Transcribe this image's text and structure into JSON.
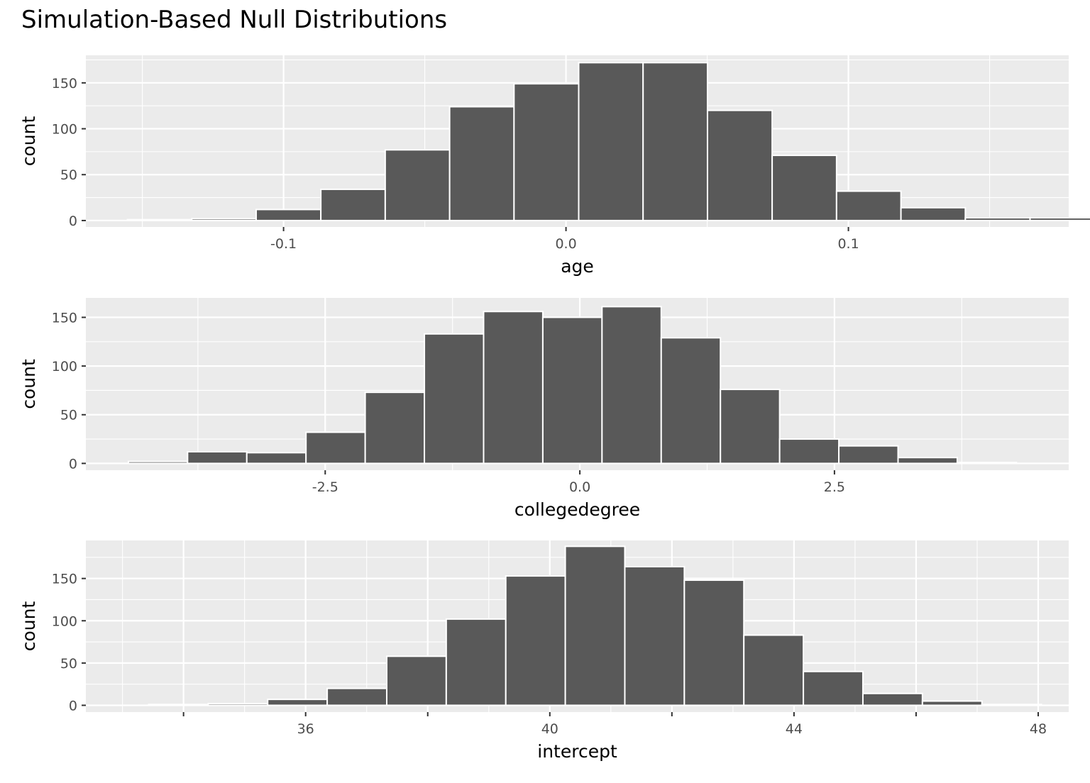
{
  "title": "Simulation-Based Null Distributions",
  "colors": {
    "panel_bg": "#ebebeb",
    "grid": "#ffffff",
    "bar_fill": "#595959",
    "bar_outline": "#ffffff",
    "tick_text": "#4d4d4d"
  },
  "chart_data": [
    {
      "type": "bar",
      "title": "",
      "xlabel": "age",
      "ylabel": "count",
      "xlim": [
        -0.17,
        0.178
      ],
      "ylim": [
        -7,
        180
      ],
      "x_ticks": [
        -0.1,
        0.0,
        0.1
      ],
      "x_tick_labels": [
        "-0.1",
        "0.0",
        "0.1"
      ],
      "y_ticks": [
        0,
        50,
        100,
        150
      ],
      "y_tick_labels": [
        "0",
        "50",
        "100",
        "150"
      ],
      "grid": true,
      "bin_width": 0.02282,
      "bin_edges": [
        -0.1553,
        -0.1325,
        -0.1097,
        -0.0868,
        -0.064,
        -0.0412,
        -0.0184,
        0.0045,
        0.0273,
        0.0501,
        0.073,
        0.0958,
        0.1186,
        0.1414,
        0.1643,
        0.1871
      ],
      "counts": [
        1,
        2,
        12,
        34,
        77,
        124,
        149,
        172,
        172,
        120,
        71,
        32,
        14,
        3,
        3
      ]
    },
    {
      "type": "bar",
      "title": "",
      "xlabel": "collegedegree",
      "ylabel": "count",
      "xlim": [
        -4.85,
        4.8
      ],
      "ylim": [
        -7,
        170
      ],
      "x_ticks": [
        -2.5,
        0.0,
        2.5
      ],
      "x_tick_labels": [
        "-2.5",
        "0.0",
        "2.5"
      ],
      "y_ticks": [
        0,
        50,
        100,
        150
      ],
      "y_tick_labels": [
        "0",
        "50",
        "100",
        "150"
      ],
      "grid": true,
      "bin_width": 0.5813,
      "bin_edges": [
        -4.4326,
        -3.8513,
        -3.27,
        -2.6887,
        -2.1074,
        -1.5261,
        -0.9448,
        -0.3635,
        0.2178,
        0.7991,
        1.3804,
        1.9617,
        2.543,
        3.1243,
        3.7056,
        4.2869
      ],
      "counts": [
        2,
        12,
        11,
        32,
        73,
        133,
        156,
        150,
        161,
        129,
        76,
        25,
        18,
        6,
        1
      ]
    },
    {
      "type": "bar",
      "title": "",
      "xlabel": "intercept",
      "ylabel": "count",
      "xlim": [
        32.4,
        48.5
      ],
      "ylim": [
        -8,
        195
      ],
      "x_ticks": [
        34,
        36,
        38,
        40,
        42,
        44,
        46,
        48
      ],
      "x_tick_labels": [
        "",
        "36",
        "",
        "40",
        "",
        "44",
        "",
        "48"
      ],
      "y_ticks": [
        0,
        50,
        100,
        150
      ],
      "y_tick_labels": [
        "0",
        "50",
        "100",
        "150"
      ],
      "grid": true,
      "bin_width": 0.975,
      "bin_edges": [
        33.4286,
        34.4036,
        35.3786,
        36.3536,
        37.3286,
        38.3036,
        39.2786,
        40.2536,
        41.2286,
        42.2036,
        43.1786,
        44.1536,
        45.1286,
        46.1036,
        47.0786,
        48.0536
      ],
      "counts": [
        1,
        2,
        7,
        20,
        58,
        102,
        153,
        188,
        164,
        148,
        83,
        40,
        14,
        5,
        1
      ]
    }
  ]
}
